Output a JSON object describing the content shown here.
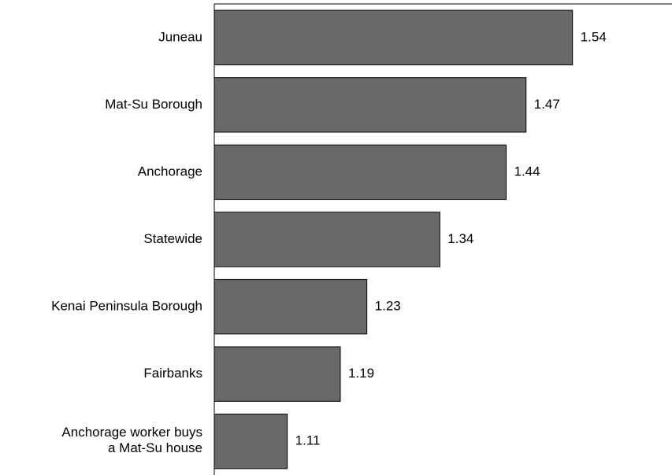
{
  "chart_data": {
    "type": "bar",
    "orientation": "horizontal",
    "categories": [
      "Juneau",
      "Mat-Su Borough",
      "Anchorage",
      "Statewide",
      "Kenai Peninsula Borough",
      "Fairbanks",
      "Anchorage worker buys\na Mat-Su house"
    ],
    "values": [
      1.54,
      1.47,
      1.44,
      1.34,
      1.23,
      1.19,
      1.11
    ],
    "color": "#696969",
    "xlim": [
      1,
      1.69
    ]
  }
}
